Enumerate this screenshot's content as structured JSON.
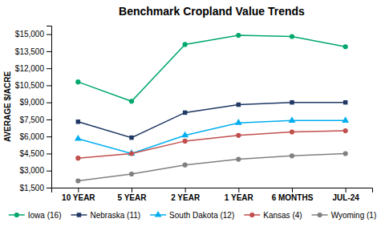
{
  "chart_data": {
    "type": "line",
    "title": "Benchmark Cropland Value Trends",
    "ylabel": "AVERAGE $/ACRE",
    "categories": [
      "10 YEAR",
      "5 YEAR",
      "2 YEAR",
      "1 YEAR",
      "6 MONTHS",
      "JUL-24"
    ],
    "series": [
      {
        "name": "Iowa (16)",
        "color": "#00A86B",
        "marker": "circle",
        "values": [
          10800,
          9100,
          14100,
          14900,
          14800,
          13900
        ]
      },
      {
        "name": "Nebraska (11)",
        "color": "#1F3864",
        "marker": "square",
        "values": [
          7300,
          5900,
          8100,
          8800,
          9000,
          9000
        ]
      },
      {
        "name": "South Dakota (12)",
        "color": "#00AEEF",
        "marker": "triangle",
        "values": [
          5800,
          4500,
          6100,
          7200,
          7400,
          7400
        ]
      },
      {
        "name": "Kansas (4)",
        "color": "#C0504D",
        "marker": "circle",
        "values": [
          4100,
          4500,
          5600,
          6100,
          6400,
          6500
        ]
      },
      {
        "name": "Wyoming (1)",
        "color": "#808080",
        "marker": "circle",
        "values": [
          2100,
          2700,
          3500,
          4000,
          4300,
          4500
        ]
      }
    ],
    "ylim": [
      1500,
      15750
    ],
    "yticks": [
      {
        "value": 1500,
        "label": "$1,500"
      },
      {
        "value": 3000,
        "label": "$3,000"
      },
      {
        "value": 4500,
        "label": "$4,500"
      },
      {
        "value": 6000,
        "label": "$6,000"
      },
      {
        "value": 7500,
        "label": "$7,500"
      },
      {
        "value": 9000,
        "label": "$9,000"
      },
      {
        "value": 10500,
        "label": "$10,500"
      },
      {
        "value": 12000,
        "label": "$12,000"
      },
      {
        "value": 13500,
        "label": "$13,500"
      },
      {
        "value": 15000,
        "label": "$15,000"
      }
    ],
    "grid": false,
    "legend": "bottom"
  }
}
